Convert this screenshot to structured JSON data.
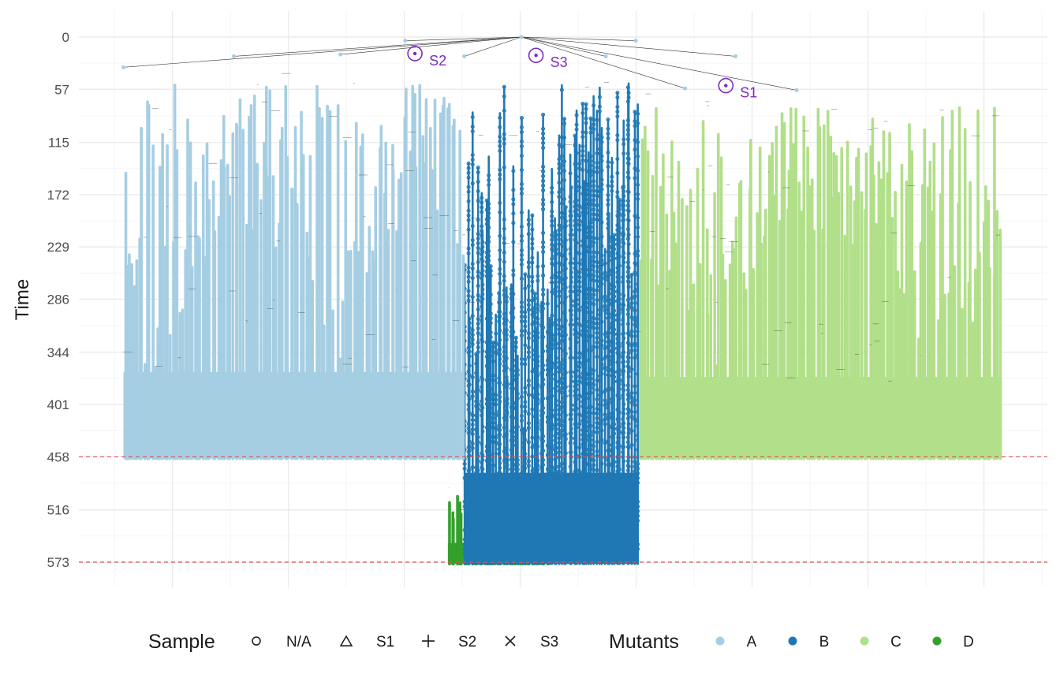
{
  "chart_data": {
    "type": "scatter",
    "subtype": "genealogy-tree",
    "title": "",
    "xlabel": "",
    "ylabel": "Time",
    "y_reversed": true,
    "ylim": [
      0,
      600
    ],
    "y_ticks": [
      0,
      57,
      115,
      172,
      229,
      286,
      344,
      401,
      458,
      516,
      573
    ],
    "x_grid": true,
    "x_tick_labels": [],
    "reference_lines": [
      {
        "name": "observation-line-1",
        "y": 458,
        "color": "#D9534F",
        "style": "dashed"
      },
      {
        "name": "observation-line-2",
        "y": 573,
        "color": "#D9534F",
        "style": "dashed"
      }
    ],
    "samples": [
      {
        "label": "S1",
        "x_fraction": 0.668,
        "y": 53
      },
      {
        "label": "S2",
        "x_fraction": 0.347,
        "y": 18
      },
      {
        "label": "S3",
        "x_fraction": 0.472,
        "y": 20
      }
    ],
    "clones": [
      {
        "name": "A",
        "color": "#A6CEE3",
        "x_start": 0.046,
        "x_end": 0.397,
        "y_start": 30,
        "y_end": 460,
        "filled": true
      },
      {
        "name": "B",
        "color": "#1F78B4",
        "x_start": 0.398,
        "x_end": 0.578,
        "y_start": 22,
        "y_end": 575,
        "filled": false
      },
      {
        "name": "C",
        "color": "#B2DF8A",
        "x_start": 0.579,
        "x_end": 0.953,
        "y_start": 55,
        "y_end": 460,
        "filled": true
      },
      {
        "name": "D",
        "color": "#33A02C",
        "x_start": 0.381,
        "x_end": 0.485,
        "y_start": 470,
        "y_end": 575,
        "filled": true
      }
    ]
  },
  "legend": {
    "sample_title": "Sample",
    "sample_items": [
      {
        "symbol": "circle",
        "label": "N/A"
      },
      {
        "symbol": "triangle",
        "label": "S1"
      },
      {
        "symbol": "plus",
        "label": "S2"
      },
      {
        "symbol": "cross",
        "label": "S3"
      }
    ],
    "mutants_title": "Mutants",
    "mutant_items": [
      {
        "label": "A",
        "color": "#A6CEE3"
      },
      {
        "label": "B",
        "color": "#1F78B4"
      },
      {
        "label": "C",
        "color": "#B2DF8A"
      },
      {
        "label": "D",
        "color": "#33A02C"
      }
    ]
  },
  "colors": {
    "sample_marker": "#7B2CBF",
    "grid": "#EBEBEB",
    "tree_edge": "#333333"
  }
}
